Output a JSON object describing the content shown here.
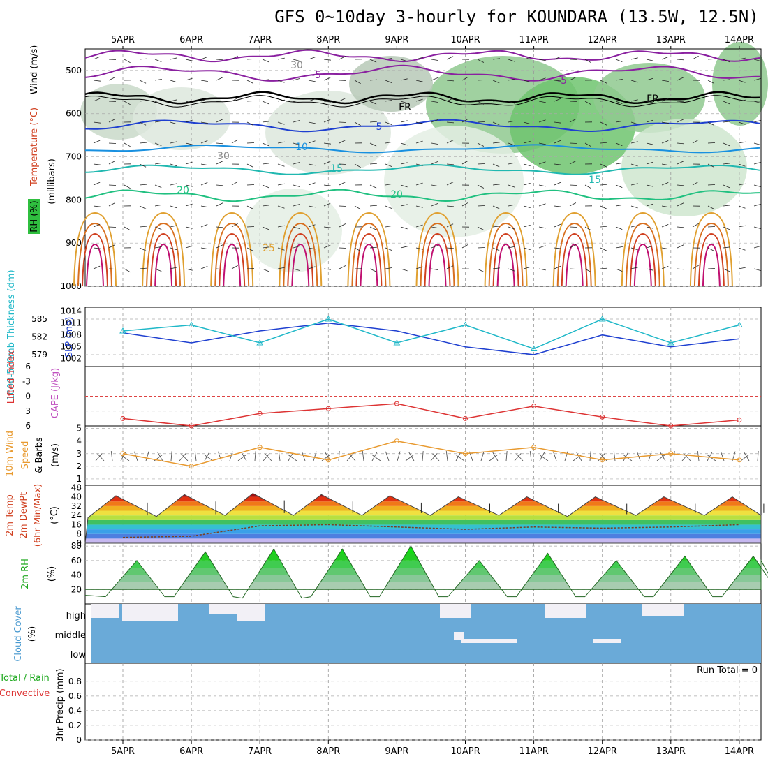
{
  "title": "GFS 0~10day 3-hourly for KOUNDARA (13.5W, 12.5N)",
  "dates": [
    "5APR",
    "6APR",
    "7APR",
    "8APR",
    "9APR",
    "10APR",
    "11APR",
    "12APR",
    "13APR",
    "14APR"
  ],
  "colors": {
    "rh_fill": "#2fbf3f",
    "slp": "#1e3fd0",
    "thick": "#20b8c8",
    "temp_warm": "#e0a030",
    "temp_hot": "#d04020",
    "cape": "#dd4444",
    "wind": "#e89a30",
    "rh2m": "#22cc22",
    "cloud": "#6aaad8",
    "lifted": "#dd3333"
  },
  "panels": {
    "upper": {
      "ylabel_rh": "RH (%)",
      "ylabel_temp": "Temperature (°C)",
      "ylabel_wind": "Wind (m/s)",
      "ylabel_mb": "(millibars)",
      "ticks": [
        "500",
        "600",
        "700",
        "800",
        "900",
        "1000"
      ],
      "contour_labels": [
        "-5",
        "-5",
        "5",
        "10",
        "15",
        "15",
        "20",
        "20",
        "25",
        "FR",
        "FR",
        "30",
        "30"
      ]
    },
    "slp": {
      "ylabel_thick": "1000-500mb Thickness (dm)",
      "ylabel_slp": "SLP (mb)",
      "thick_ticks": [
        "585",
        "582",
        "579"
      ],
      "slp_ticks": [
        "1014",
        "1011",
        "1008",
        "1005",
        "1002"
      ]
    },
    "cape": {
      "ylabel_li": "Lifted Index",
      "ylabel_cape": "CAPE (J/kg)",
      "ticks": [
        "-6",
        "-3",
        "0",
        "3",
        "6"
      ]
    },
    "wind": {
      "ylabel1": "10m Wind",
      "ylabel2": "Speed",
      "ylabel3": "& Barbs",
      "ylabel4": "(m/s)",
      "ticks": [
        "5",
        "4",
        "3",
        "2",
        "1"
      ]
    },
    "temp": {
      "ylabel1": "2m Temp",
      "ylabel2": "2m DewPt",
      "ylabel3": "(6hr Min/Max)",
      "ylabel4": "(°C)",
      "ticks": [
        "48",
        "40",
        "32",
        "24",
        "16",
        "8",
        "0"
      ]
    },
    "rh": {
      "ylabel1": "2m RH",
      "ylabel2": "(%)",
      "ticks": [
        "80",
        "60",
        "40",
        "20"
      ]
    },
    "cloud": {
      "ylabel1": "Cloud Cover",
      "ylabel2": "(%)",
      "levels": [
        "high",
        "middle",
        "low"
      ]
    },
    "precip": {
      "ylabel1": "Total / Rain",
      "ylabel2": "Convective",
      "ylabel3": "3hr Precip (mm)",
      "ticks": [
        "0.8",
        "0.6",
        "0.4",
        "0.2",
        "0"
      ],
      "run_total": "Run Total = 0"
    }
  },
  "chart_data": [
    {
      "type": "line",
      "title": "SLP and 1000-500mb Thickness",
      "x": [
        "5APR",
        "6APR",
        "7APR",
        "8APR",
        "9APR",
        "10APR",
        "11APR",
        "12APR",
        "13APR",
        "14APR"
      ],
      "series": [
        {
          "name": "SLP (mb)",
          "values": [
            1008.5,
            1006,
            1009,
            1011,
            1009,
            1005,
            1003,
            1008,
            1005,
            1007
          ]
        },
        {
          "name": "1000-500mb Thickness (dm)",
          "values": [
            583,
            584,
            581,
            585,
            581,
            584,
            580,
            585,
            581,
            584
          ]
        }
      ],
      "slp_ylim": [
        1002,
        1014
      ],
      "thick_ylim": [
        578,
        586
      ]
    },
    {
      "type": "line",
      "title": "Lifted Index",
      "x": [
        "5APR",
        "6APR",
        "7APR",
        "8APR",
        "9APR",
        "10APR",
        "11APR",
        "12APR",
        "13APR",
        "14APR"
      ],
      "series": [
        {
          "name": "Lifted Index",
          "values": [
            4.5,
            6,
            3.5,
            2.5,
            1.5,
            4.5,
            2,
            4.2,
            6,
            4.8
          ]
        }
      ],
      "ylim": [
        -6,
        6
      ]
    },
    {
      "type": "line",
      "title": "10m Wind Speed",
      "x": [
        "5APR",
        "6APR",
        "7APR",
        "8APR",
        "9APR",
        "10APR",
        "11APR",
        "12APR",
        "13APR",
        "14APR"
      ],
      "series": [
        {
          "name": "10m Wind Speed",
          "values": [
            3,
            2,
            3.5,
            2.5,
            4,
            3,
            3.5,
            2.5,
            3,
            2.5
          ]
        }
      ],
      "ylim": [
        0.5,
        5
      ]
    },
    {
      "type": "area",
      "title": "2m Temperature / Dew Point",
      "x": [
        "5APR",
        "6APR",
        "7APR",
        "8APR",
        "9APR",
        "10APR",
        "11APR",
        "12APR",
        "13APR",
        "14APR"
      ],
      "series": [
        {
          "name": "2m Temp max",
          "values": [
            41,
            42,
            43,
            42,
            41,
            40,
            40,
            40,
            40,
            40
          ]
        },
        {
          "name": "2m Temp min",
          "values": [
            22,
            23,
            24,
            24,
            24,
            24,
            24,
            23,
            24,
            24
          ]
        },
        {
          "name": "2m DewPt",
          "values": [
            5,
            6,
            15,
            16,
            14,
            12,
            14,
            13,
            14,
            16
          ]
        }
      ],
      "ylim": [
        0,
        48
      ]
    },
    {
      "type": "area",
      "title": "2m RH",
      "x": [
        "5APR",
        "6APR",
        "7APR",
        "8APR",
        "9APR",
        "10APR",
        "11APR",
        "12APR",
        "13APR",
        "14APR"
      ],
      "series": [
        {
          "name": "2m RH max",
          "values": [
            60,
            72,
            76,
            76,
            80,
            60,
            70,
            60,
            66,
            66
          ]
        },
        {
          "name": "2m RH min",
          "values": [
            10,
            10,
            8,
            10,
            10,
            10,
            10,
            10,
            10,
            10
          ]
        }
      ],
      "ylim": [
        0,
        82
      ]
    },
    {
      "type": "bar",
      "title": "3hr Precip (mm)",
      "x": [
        "5APR",
        "6APR",
        "7APR",
        "8APR",
        "9APR",
        "10APR",
        "11APR",
        "12APR",
        "13APR",
        "14APR"
      ],
      "series": [
        {
          "name": "Total",
          "values": [
            0,
            0,
            0,
            0,
            0,
            0,
            0,
            0,
            0,
            0
          ]
        }
      ],
      "ylim": [
        0,
        1
      ]
    }
  ]
}
